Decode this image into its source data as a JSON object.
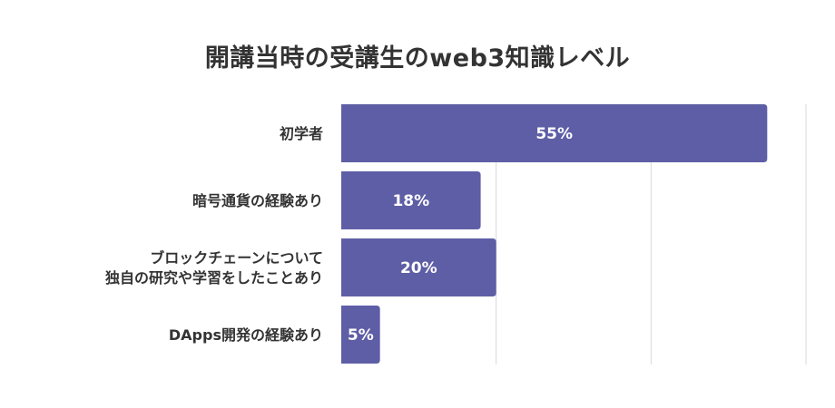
{
  "chart_data": {
    "type": "bar",
    "orientation": "horizontal",
    "title": "開講当時の受講生のweb3知識レベル",
    "categories": [
      [
        "初学者"
      ],
      [
        "暗号通貨の経験あり"
      ],
      [
        "ブロックチェーンについて",
        "独自の研究や学習をしたことあり"
      ],
      [
        "DApps開発の経験あり"
      ]
    ],
    "values": [
      55,
      18,
      20,
      5
    ],
    "value_labels": [
      "55%",
      "18%",
      "20%",
      "5%"
    ],
    "xlim": [
      0,
      60
    ],
    "grid": true,
    "bar_color": "#5e5ea6",
    "grid_color": "#d9d9d9"
  }
}
